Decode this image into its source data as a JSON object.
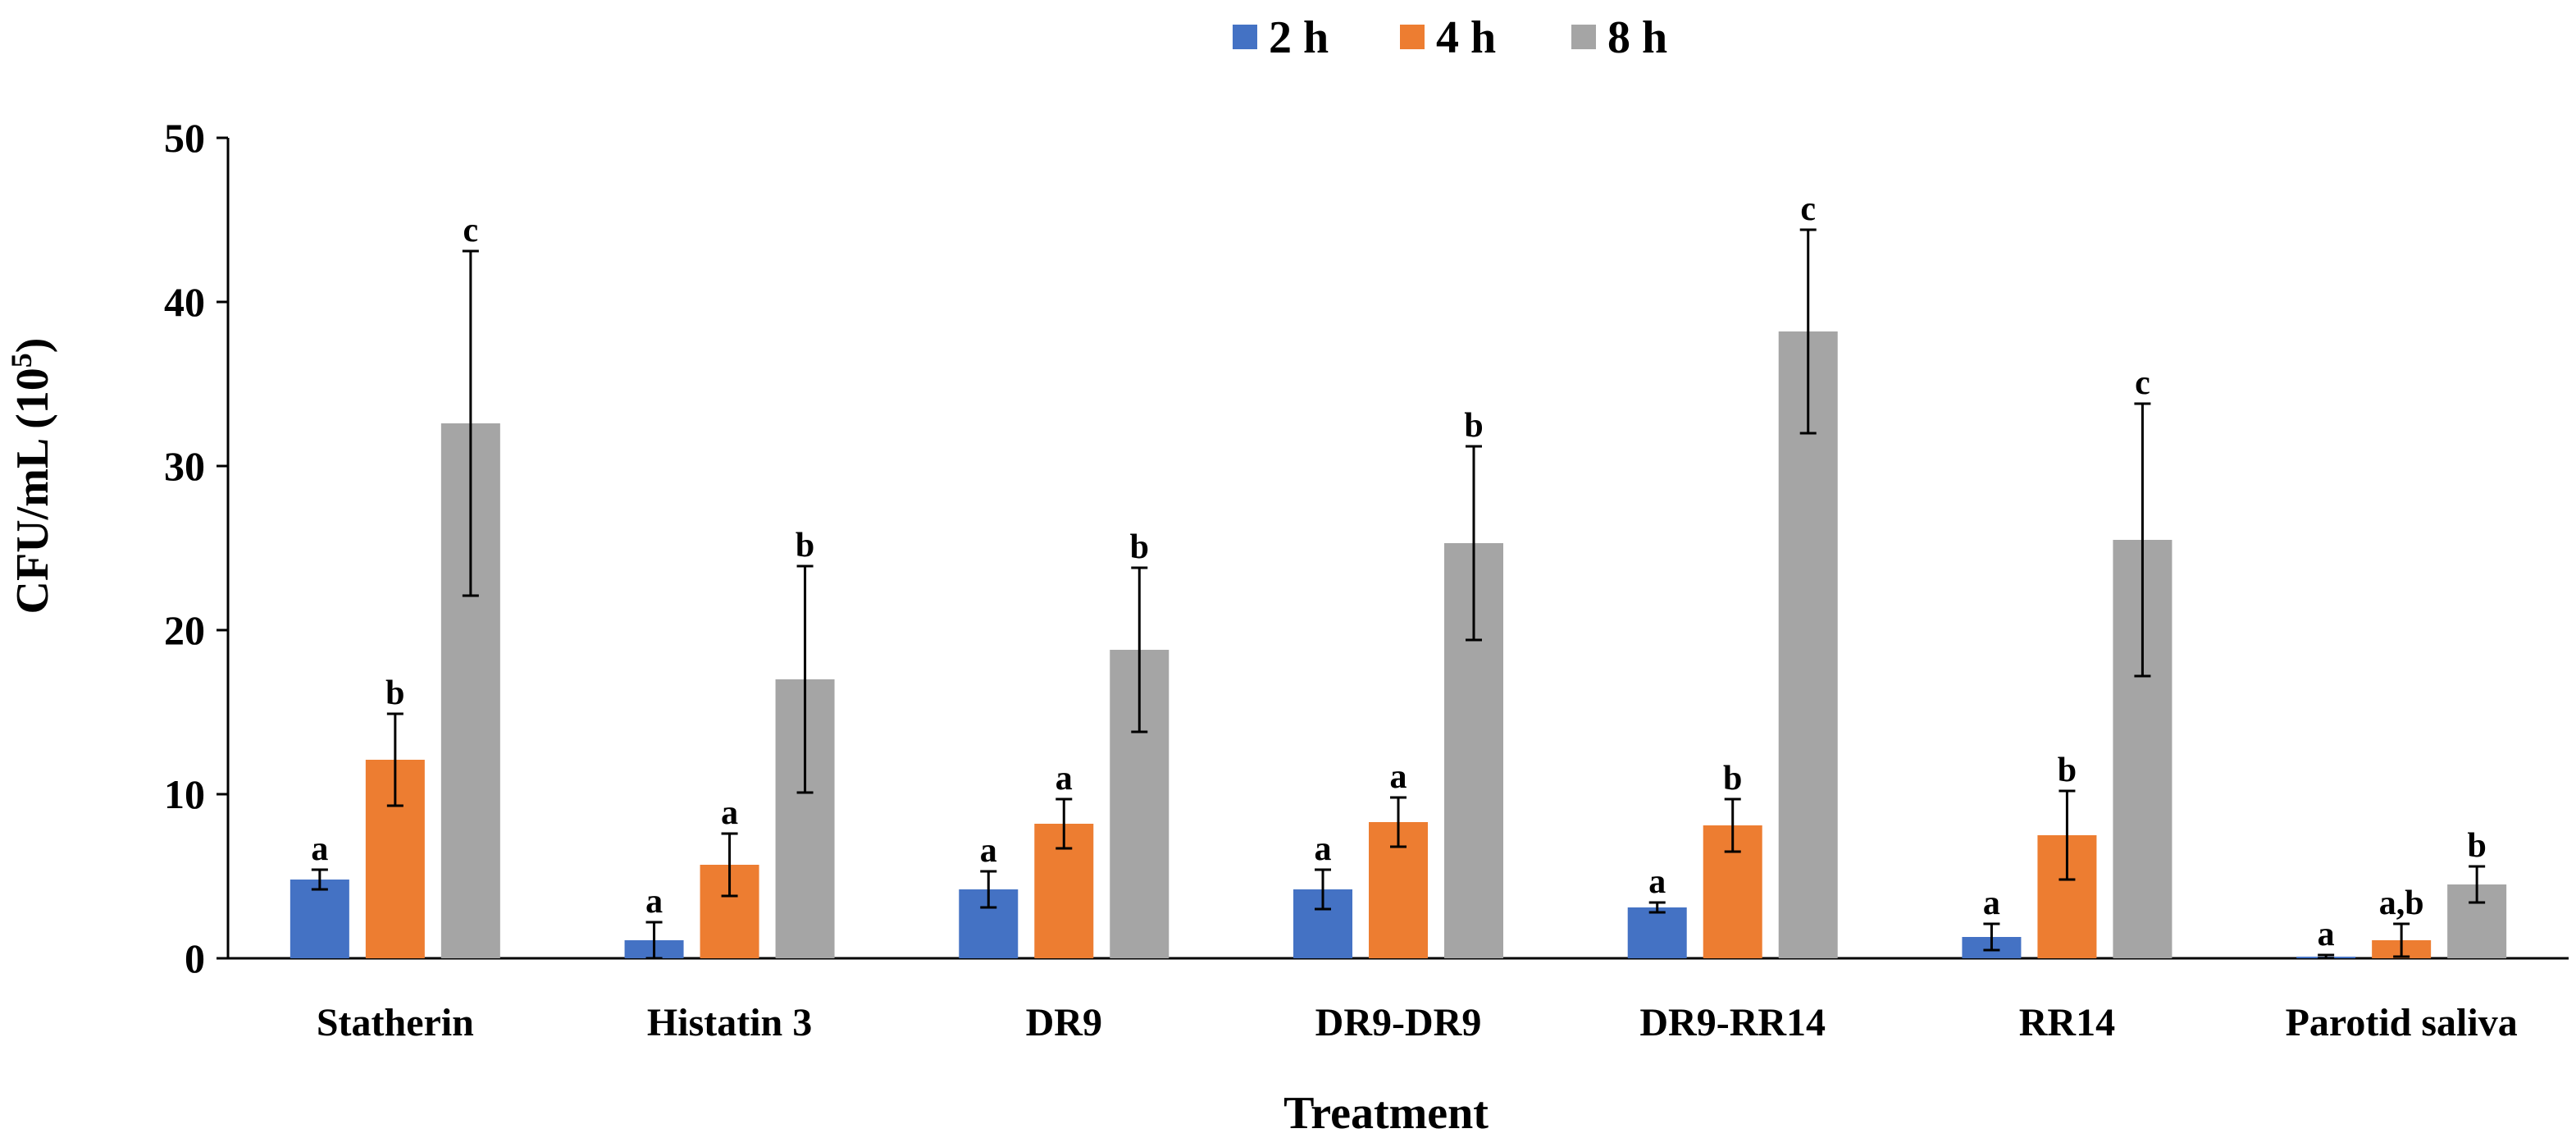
{
  "chart_data": {
    "type": "bar",
    "title": "",
    "xlabel": "Treatment",
    "ylabel": "CFU/mL (10",
    "ylabel_sup": "5",
    "ylabel_close": ")",
    "ylim": [
      0,
      50
    ],
    "yticks": [
      0,
      10,
      20,
      30,
      40,
      50
    ],
    "grid": false,
    "legend_position": "top-center",
    "categories": [
      "Statherin",
      "Histatin 3",
      "DR9",
      "DR9-DR9",
      "DR9-RR14",
      "RR14",
      "Parotid saliva"
    ],
    "series": [
      {
        "name": "2 h",
        "color": "#4472C4",
        "values": [
          4.8,
          1.1,
          4.2,
          4.2,
          3.1,
          1.3,
          0.1
        ],
        "errors": [
          0.6,
          1.1,
          1.1,
          1.2,
          0.3,
          0.8,
          0.1
        ],
        "labels": [
          "a",
          "a",
          "a",
          "a",
          "a",
          "a",
          "a"
        ]
      },
      {
        "name": "4 h",
        "color": "#ED7D31",
        "values": [
          12.1,
          5.7,
          8.2,
          8.3,
          8.1,
          7.5,
          1.1
        ],
        "errors": [
          2.8,
          1.9,
          1.5,
          1.5,
          1.6,
          2.7,
          1.0
        ],
        "labels": [
          "b",
          "a",
          "a",
          "a",
          "b",
          "b",
          "a,b"
        ]
      },
      {
        "name": "8 h",
        "color": "#A5A5A5",
        "values": [
          32.6,
          17.0,
          18.8,
          25.3,
          38.2,
          25.5,
          4.5
        ],
        "errors": [
          10.5,
          6.9,
          5.0,
          5.9,
          6.2,
          8.3,
          1.1
        ],
        "labels": [
          "c",
          "b",
          "b",
          "b",
          "c",
          "c",
          "b"
        ]
      }
    ]
  }
}
